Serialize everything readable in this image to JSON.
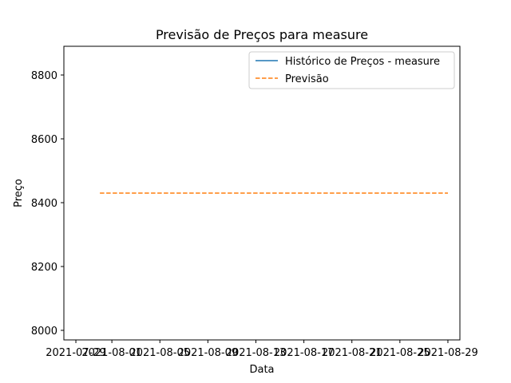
{
  "chart_data": {
    "type": "line",
    "title": "Previsão de Preços para measure",
    "xlabel": "Data",
    "ylabel": "Preço",
    "xlim": [
      "2021-07-28",
      "2021-08-30"
    ],
    "ylim": [
      7970,
      8890
    ],
    "x_ticks": [
      "2021-07-29",
      "2021-08-01",
      "2021-08-05",
      "2021-08-09",
      "2021-08-13",
      "2021-08-17",
      "2021-08-21",
      "2021-08-25",
      "2021-08-29"
    ],
    "y_ticks": [
      8000,
      8200,
      8400,
      8600,
      8800
    ],
    "legend_position": "upper right",
    "grid": false,
    "series": [
      {
        "name": "Histórico de Preços - measure",
        "color": "#1f77b4",
        "style": "solid",
        "x": [],
        "y": []
      },
      {
        "name": "Previsão",
        "color": "#ff7f0e",
        "style": "dashed",
        "x": [
          "2021-07-31",
          "2021-08-29"
        ],
        "y": [
          8430,
          8430
        ]
      }
    ]
  }
}
